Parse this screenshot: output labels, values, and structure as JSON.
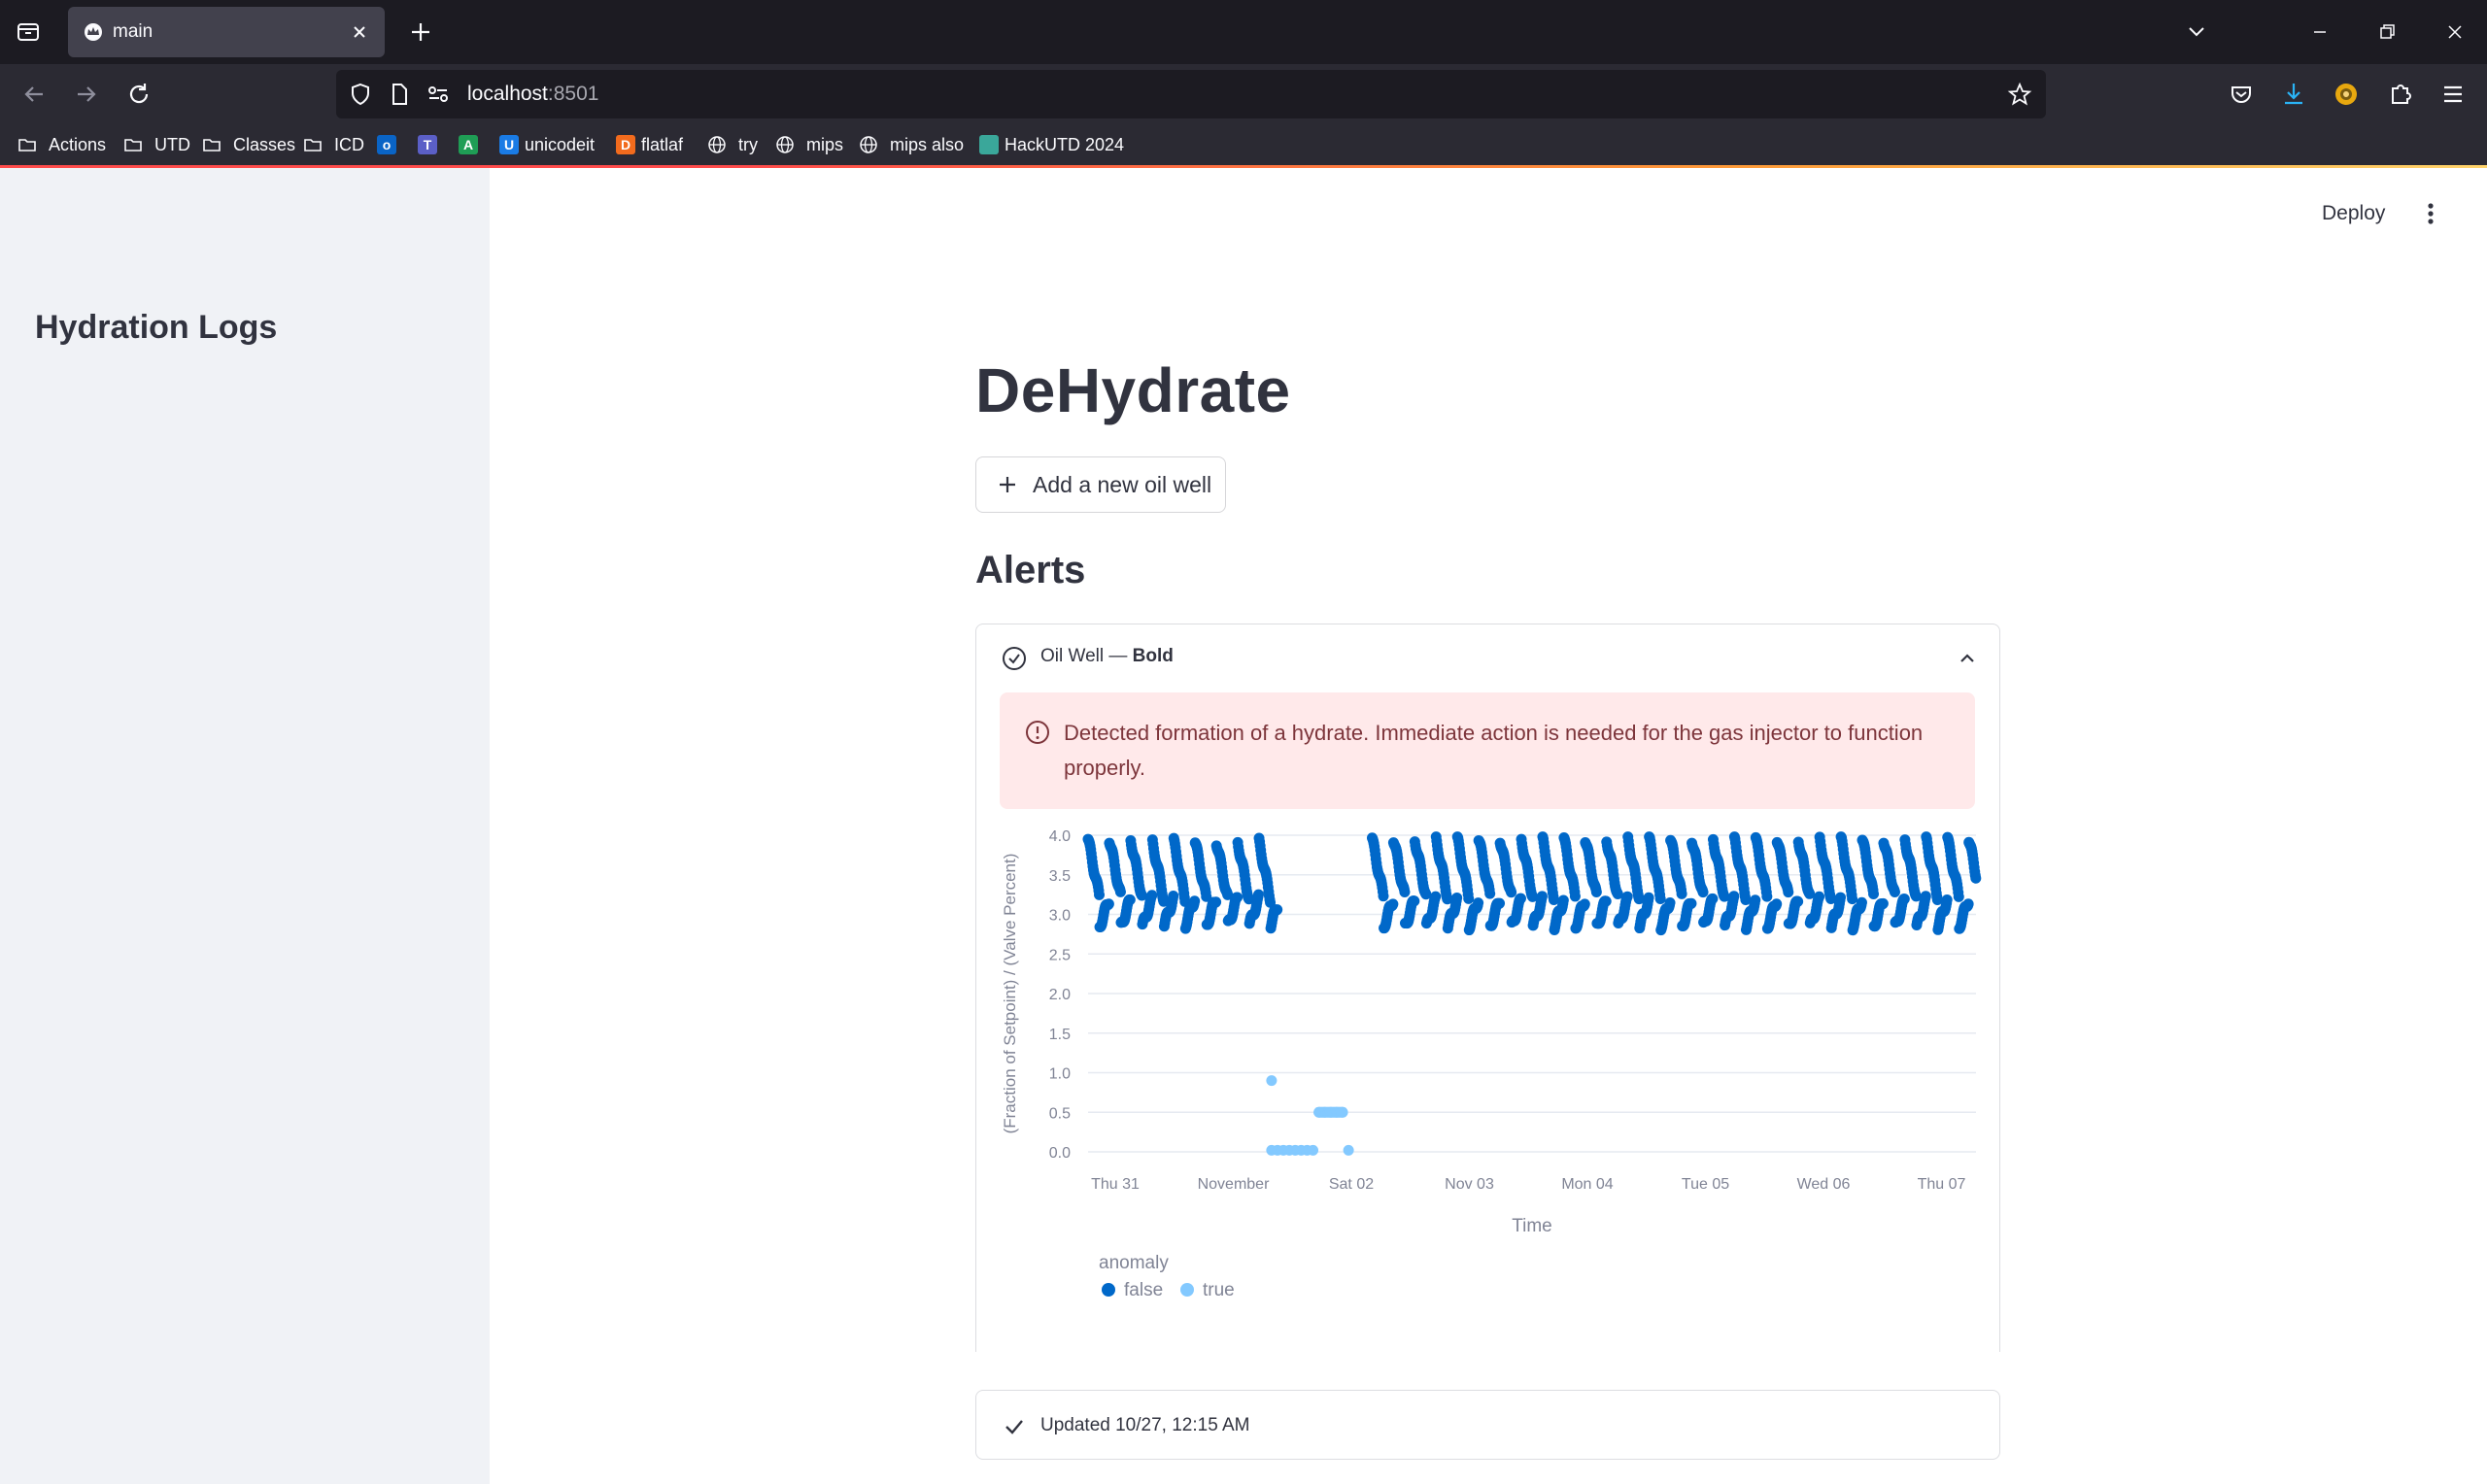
{
  "browser": {
    "tab_title": "main",
    "url_host": "localhost",
    "url_port": ":8501",
    "bookmarks": [
      {
        "label": "Actions",
        "icon": "folder-icon"
      },
      {
        "label": "UTD",
        "icon": "folder-icon"
      },
      {
        "label": "Classes",
        "icon": "folder-icon"
      },
      {
        "label": "ICD",
        "icon": "folder-icon"
      },
      {
        "label": "",
        "icon": "outlook-icon"
      },
      {
        "label": "",
        "icon": "teams-icon"
      },
      {
        "label": "",
        "icon": "app-a-icon"
      },
      {
        "label": "unicodeit",
        "icon": "unicodeit-icon"
      },
      {
        "label": "flatlaf",
        "icon": "flatlaf-icon"
      },
      {
        "label": "try",
        "icon": "globe-icon"
      },
      {
        "label": "mips",
        "icon": "globe-icon"
      },
      {
        "label": "mips also",
        "icon": "globe-icon"
      },
      {
        "label": "HackUTD 2024",
        "icon": "hackutd-icon"
      }
    ]
  },
  "sidebar": {
    "title": "Hydration Logs"
  },
  "header": {
    "deploy_label": "Deploy"
  },
  "main": {
    "title": "DeHydrate",
    "add_button_label": "Add a new oil well",
    "alerts_heading": "Alerts",
    "expander": {
      "label_prefix": "Oil Well — ",
      "label_bold": "Bold",
      "error_text": "Detected formation of a hydrate. Immediate action is needed for the gas injector to function properly."
    },
    "status_text": "Updated 10/27, 12:15 AM"
  },
  "colors": {
    "false_point": "#0068c9",
    "true_point": "#83c9ff",
    "error_bg": "#ffe9ea",
    "error_text": "#7d353b",
    "sidebar_bg": "#f0f2f6"
  },
  "chart_data": {
    "type": "scatter",
    "xlabel": "Time",
    "ylabel": "(Fraction of Setpoint) / (Valve Percent)",
    "ylim": [
      0,
      4.0
    ],
    "y_ticks": [
      "0.0",
      "0.5",
      "1.0",
      "1.5",
      "2.0",
      "2.5",
      "3.0",
      "3.5",
      "4.0"
    ],
    "x_ticks": [
      "Thu 31",
      "November",
      "Sat 02",
      "Nov 03",
      "Mon 04",
      "Tue 05",
      "Wed 06",
      "Thu 07"
    ],
    "x_range_days": [
      0,
      7.5
    ],
    "legend_title": "anomaly",
    "legend": [
      "false",
      "true"
    ],
    "series": [
      {
        "name": "false",
        "segments": [
          [
            0.0,
            1.6
          ],
          [
            2.4,
            7.5
          ]
        ],
        "cycle_days": 0.18,
        "value_range": [
          2.85,
          3.95
        ]
      },
      {
        "name": "true",
        "points": [
          [
            1.55,
            0.9
          ],
          [
            1.55,
            0.02
          ],
          [
            1.6,
            0.02
          ],
          [
            1.65,
            0.02
          ],
          [
            1.7,
            0.02
          ],
          [
            1.75,
            0.02
          ],
          [
            1.8,
            0.02
          ],
          [
            1.85,
            0.02
          ],
          [
            1.9,
            0.02
          ],
          [
            1.95,
            0.5
          ],
          [
            2.0,
            0.5
          ],
          [
            2.05,
            0.5
          ],
          [
            2.1,
            0.5
          ],
          [
            2.15,
            0.5
          ],
          [
            2.2,
            0.02
          ]
        ]
      }
    ]
  }
}
